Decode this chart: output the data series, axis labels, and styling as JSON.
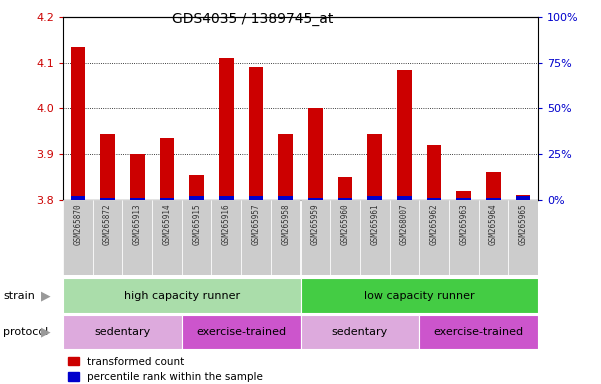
{
  "title": "GDS4035 / 1389745_at",
  "samples": [
    "GSM265870",
    "GSM265872",
    "GSM265913",
    "GSM265914",
    "GSM265915",
    "GSM265916",
    "GSM265957",
    "GSM265958",
    "GSM265959",
    "GSM265960",
    "GSM265961",
    "GSM268007",
    "GSM265962",
    "GSM265963",
    "GSM265964",
    "GSM265965"
  ],
  "red_values": [
    4.135,
    3.945,
    3.9,
    3.935,
    3.855,
    4.11,
    4.09,
    3.945,
    4.0,
    3.85,
    3.945,
    4.085,
    3.92,
    3.82,
    3.86,
    3.81
  ],
  "blue_values": [
    2.0,
    1.0,
    1.0,
    1.0,
    2.0,
    2.0,
    2.0,
    2.0,
    1.0,
    1.0,
    2.0,
    2.0,
    1.0,
    1.0,
    1.0,
    2.0
  ],
  "ylim_left": [
    3.8,
    4.2
  ],
  "ylim_right": [
    0,
    100
  ],
  "yticks_left": [
    3.8,
    3.9,
    4.0,
    4.1,
    4.2
  ],
  "yticks_right": [
    0,
    25,
    50,
    75,
    100
  ],
  "ytick_right_labels": [
    "0%",
    "25%",
    "50%",
    "75%",
    "100%"
  ],
  "strain_groups": [
    {
      "label": "high capacity runner",
      "start": 0,
      "end": 8,
      "color": "#AADDAA"
    },
    {
      "label": "low capacity runner",
      "start": 8,
      "end": 16,
      "color": "#44CC44"
    }
  ],
  "protocol_groups": [
    {
      "label": "sedentary",
      "start": 0,
      "end": 4,
      "color": "#DDAADD"
    },
    {
      "label": "exercise-trained",
      "start": 4,
      "end": 8,
      "color": "#CC55CC"
    },
    {
      "label": "sedentary",
      "start": 8,
      "end": 12,
      "color": "#DDAADD"
    },
    {
      "label": "exercise-trained",
      "start": 12,
      "end": 16,
      "color": "#CC55CC"
    }
  ],
  "red_color": "#CC0000",
  "blue_color": "#0000CC",
  "legend_red": "transformed count",
  "legend_blue": "percentile rank within the sample",
  "tick_label_color_left": "#CC0000",
  "tick_label_color_right": "#0000CC",
  "grid_color": "#000000",
  "xtick_label_color": "#333333",
  "xtick_bg_color": "#CCCCCC"
}
